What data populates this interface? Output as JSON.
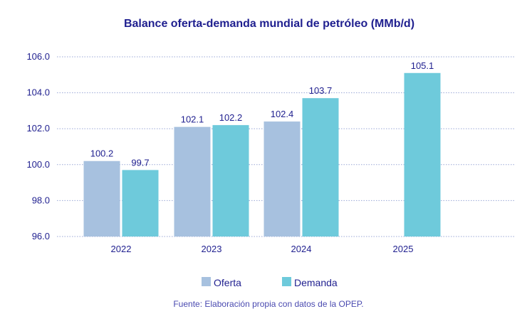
{
  "colors": {
    "text": "#1f1f8f",
    "oferta": "#a7c1df",
    "demanda": "#6ecadb",
    "grid": "#9aa7d6",
    "source": "#4a4ab0"
  },
  "chart_data": {
    "type": "bar",
    "title": "Balance oferta-demanda mundial de petróleo (MMb/d)",
    "categories": [
      "2022",
      "2023",
      "2024",
      "2025"
    ],
    "series": [
      {
        "name": "Oferta",
        "values": [
          100.2,
          102.1,
          102.4,
          null
        ],
        "labels": [
          "100.2",
          "102.1",
          "102.4",
          ""
        ]
      },
      {
        "name": "Demanda",
        "values": [
          99.7,
          102.2,
          103.7,
          105.1
        ],
        "labels": [
          "99.7",
          "102.2",
          "103.7",
          "105.1"
        ]
      }
    ],
    "yticks": [
      "96.0",
      "98.0",
      "100.0",
      "102.0",
      "104.0",
      "106.0"
    ],
    "ylim": [
      96.0,
      106.0
    ],
    "xlabel": "",
    "ylabel": "",
    "legend": "bottom-center",
    "grid": true
  },
  "source": "Fuente: Elaboración propia con datos de la OPEP."
}
